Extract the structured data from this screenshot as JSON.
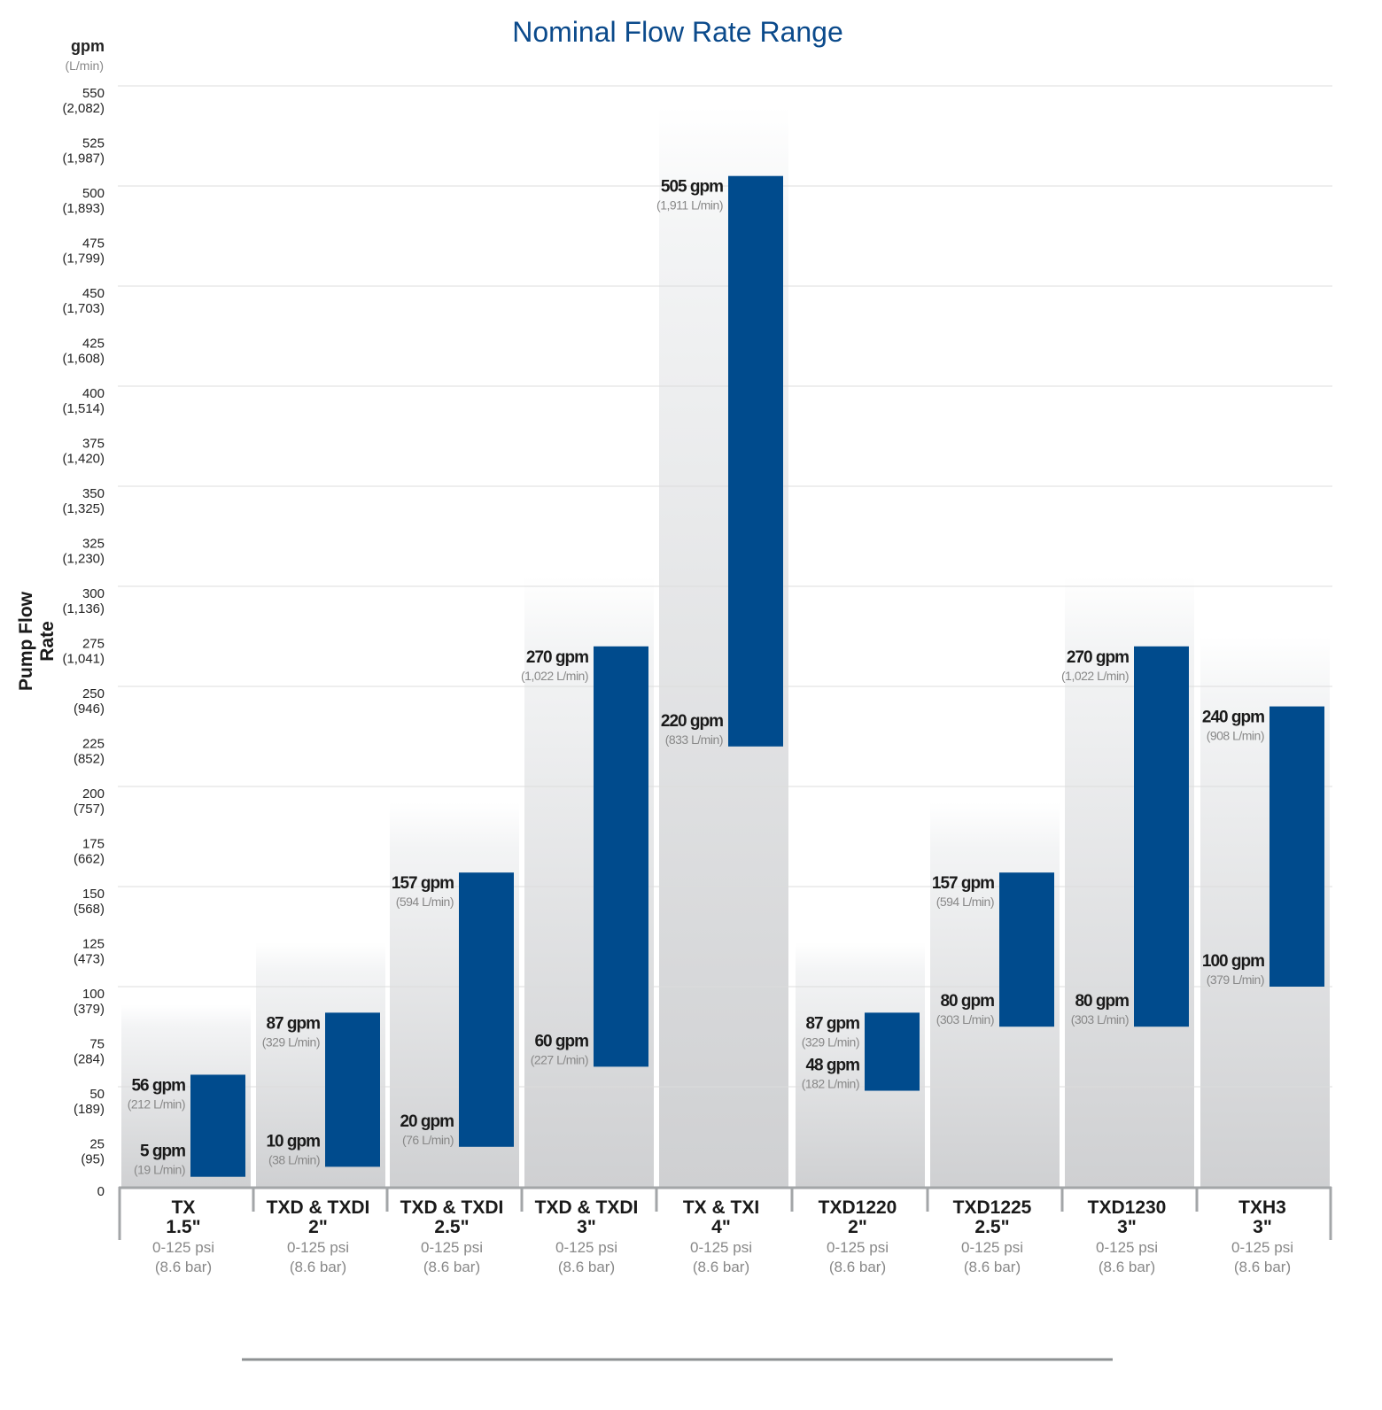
{
  "chart_data": {
    "type": "bar",
    "subtype": "floating-range",
    "title": "Nominal Flow Rate Range",
    "ylabel": "Pump Flow Rate",
    "y_unit": "gpm",
    "y_unit_secondary": "(L/min)",
    "ylim": [
      0,
      550
    ],
    "grid": true,
    "yticks": [
      {
        "v": 0,
        "gpm": "0",
        "lmin": ""
      },
      {
        "v": 25,
        "gpm": "25",
        "lmin": "(95)"
      },
      {
        "v": 50,
        "gpm": "50",
        "lmin": "(189)"
      },
      {
        "v": 75,
        "gpm": "75",
        "lmin": "(284)"
      },
      {
        "v": 100,
        "gpm": "100",
        "lmin": "(379)"
      },
      {
        "v": 125,
        "gpm": "125",
        "lmin": "(473)"
      },
      {
        "v": 150,
        "gpm": "150",
        "lmin": "(568)"
      },
      {
        "v": 175,
        "gpm": "175",
        "lmin": "(662)"
      },
      {
        "v": 200,
        "gpm": "200",
        "lmin": "(757)"
      },
      {
        "v": 225,
        "gpm": "225",
        "lmin": "(852)"
      },
      {
        "v": 250,
        "gpm": "250",
        "lmin": "(946)"
      },
      {
        "v": 275,
        "gpm": "275",
        "lmin": "(1,041)"
      },
      {
        "v": 300,
        "gpm": "300",
        "lmin": "(1,136)"
      },
      {
        "v": 325,
        "gpm": "325",
        "lmin": "(1,230)"
      },
      {
        "v": 350,
        "gpm": "350",
        "lmin": "(1,325)"
      },
      {
        "v": 375,
        "gpm": "375",
        "lmin": "(1,420)"
      },
      {
        "v": 400,
        "gpm": "400",
        "lmin": "(1,514)"
      },
      {
        "v": 425,
        "gpm": "425",
        "lmin": "(1,608)"
      },
      {
        "v": 450,
        "gpm": "450",
        "lmin": "(1,703)"
      },
      {
        "v": 475,
        "gpm": "475",
        "lmin": "(1,799)"
      },
      {
        "v": 500,
        "gpm": "500",
        "lmin": "(1,893)"
      },
      {
        "v": 525,
        "gpm": "525",
        "lmin": "(1,987)"
      },
      {
        "v": 550,
        "gpm": "550",
        "lmin": "(2,082)"
      }
    ],
    "bar_color": "#004b8d",
    "series": [
      {
        "model": "TX",
        "size": "1.5\"",
        "pressure": "0-125 psi",
        "pressure_bar": "(8.6 bar)",
        "min": 5,
        "max": 56,
        "min_label": "5 gpm",
        "min_sub": "(19 L/min)",
        "max_label": "56 gpm",
        "max_sub": "(212 L/min)"
      },
      {
        "model": "TXD & TXDI",
        "size": "2\"",
        "pressure": "0-125 psi",
        "pressure_bar": "(8.6 bar)",
        "min": 10,
        "max": 87,
        "min_label": "10 gpm",
        "min_sub": "(38 L/min)",
        "max_label": "87 gpm",
        "max_sub": "(329 L/min)"
      },
      {
        "model": "TXD & TXDI",
        "size": "2.5\"",
        "pressure": "0-125 psi",
        "pressure_bar": "(8.6 bar)",
        "min": 20,
        "max": 157,
        "min_label": "20 gpm",
        "min_sub": "(76 L/min)",
        "max_label": "157 gpm",
        "max_sub": "(594 L/min)"
      },
      {
        "model": "TXD & TXDI",
        "size": "3\"",
        "pressure": "0-125 psi",
        "pressure_bar": "(8.6 bar)",
        "min": 60,
        "max": 270,
        "min_label": "60 gpm",
        "min_sub": "(227 L/min)",
        "max_label": "270 gpm",
        "max_sub": "(1,022 L/min)"
      },
      {
        "model": "TX & TXI",
        "size": "4\"",
        "pressure": "0-125 psi",
        "pressure_bar": "(8.6 bar)",
        "min": 220,
        "max": 505,
        "min_label": "220 gpm",
        "min_sub": "(833 L/min)",
        "max_label": "505 gpm",
        "max_sub": "(1,911 L/min)"
      },
      {
        "model": "TXD1220",
        "size": "2\"",
        "pressure": "0-125 psi",
        "pressure_bar": "(8.6 bar)",
        "min": 48,
        "max": 87,
        "min_label": "48 gpm",
        "min_sub": "(182 L/min)",
        "max_label": "87 gpm",
        "max_sub": "(329 L/min)"
      },
      {
        "model": "TXD1225",
        "size": "2.5\"",
        "pressure": "0-125 psi",
        "pressure_bar": "(8.6 bar)",
        "min": 80,
        "max": 157,
        "min_label": "80 gpm",
        "min_sub": "(303 L/min)",
        "max_label": "157 gpm",
        "max_sub": "(594 L/min)"
      },
      {
        "model": "TXD1230",
        "size": "3\"",
        "pressure": "0-125 psi",
        "pressure_bar": "(8.6 bar)",
        "min": 80,
        "max": 270,
        "min_label": "80 gpm",
        "min_sub": "(303 L/min)",
        "max_label": "270 gpm",
        "max_sub": "(1,022 L/min)"
      },
      {
        "model": "TXH3",
        "size": "3\"",
        "pressure": "0-125 psi",
        "pressure_bar": "(8.6 bar)",
        "min": 100,
        "max": 240,
        "min_label": "100 gpm",
        "min_sub": "(379 L/min)",
        "max_label": "240 gpm",
        "max_sub": "(908 L/min)"
      }
    ]
  }
}
